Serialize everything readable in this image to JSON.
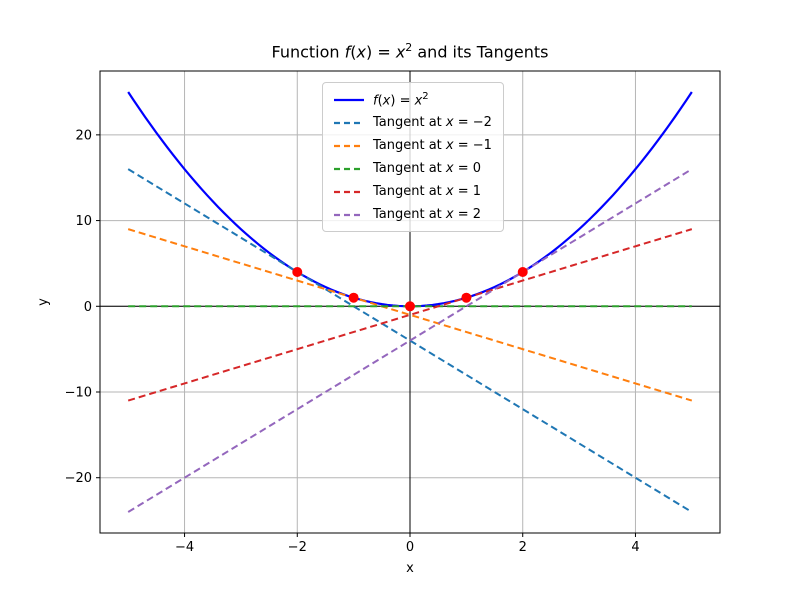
{
  "figure": {
    "title": {
      "p1": "Function ",
      "f": "f",
      "open": "(",
      "x1": "x",
      "mid": ") = ",
      "x2": "x",
      "sup": "2",
      "p2": " and its Tangents"
    }
  },
  "chart_data": {
    "type": "line",
    "title": "Function f(x) = x² and its Tangents",
    "xlabel": "x",
    "ylabel": "y",
    "xlim": [
      -5.5,
      5.5
    ],
    "ylim": [
      -26.45,
      27.45
    ],
    "x_ticks": [
      -4,
      -2,
      0,
      2,
      4
    ],
    "y_ticks": [
      -20,
      -10,
      0,
      10,
      20
    ],
    "grid": true,
    "legend_position": "upper center",
    "series": [
      {
        "name": "f(x) = x²",
        "kind": "parabola",
        "expr": "y = x^2",
        "x_range": [
          -5,
          5
        ],
        "color": "#0000ff",
        "style": "solid",
        "linewidth": 2
      },
      {
        "name": "Tangent at x = −2",
        "kind": "tangent",
        "tangent_at": -2,
        "slope": -4,
        "intercept": -4,
        "x_range": [
          -5,
          5
        ],
        "color": "#1f77b4",
        "style": "dashed",
        "linewidth": 2
      },
      {
        "name": "Tangent at x = −1",
        "kind": "tangent",
        "tangent_at": -1,
        "slope": -2,
        "intercept": -1,
        "x_range": [
          -5,
          5
        ],
        "color": "#ff7f0e",
        "style": "dashed",
        "linewidth": 2
      },
      {
        "name": "Tangent at x = 0",
        "kind": "tangent",
        "tangent_at": 0,
        "slope": 0,
        "intercept": 0,
        "x_range": [
          -5,
          5
        ],
        "color": "#2ca02c",
        "style": "dashed",
        "linewidth": 2
      },
      {
        "name": "Tangent at x = 1",
        "kind": "tangent",
        "tangent_at": 1,
        "slope": 2,
        "intercept": -1,
        "x_range": [
          -5,
          5
        ],
        "color": "#d62728",
        "style": "dashed",
        "linewidth": 2
      },
      {
        "name": "Tangent at x = 2",
        "kind": "tangent",
        "tangent_at": 2,
        "slope": 4,
        "intercept": -4,
        "x_range": [
          -5,
          5
        ],
        "color": "#9467bd",
        "style": "dashed",
        "linewidth": 2
      }
    ],
    "tangent_points": {
      "color": "#ff0000",
      "marker": "circle",
      "items": [
        [
          -2,
          4
        ],
        [
          -1,
          1
        ],
        [
          0,
          0
        ],
        [
          1,
          1
        ],
        [
          2,
          4
        ]
      ]
    },
    "zero_lines": {
      "color": "#000000"
    },
    "colors": {
      "grid": "#b5b5b5",
      "spine": "#000000",
      "tick": "#000000",
      "legend_border": "#cccccc"
    }
  }
}
